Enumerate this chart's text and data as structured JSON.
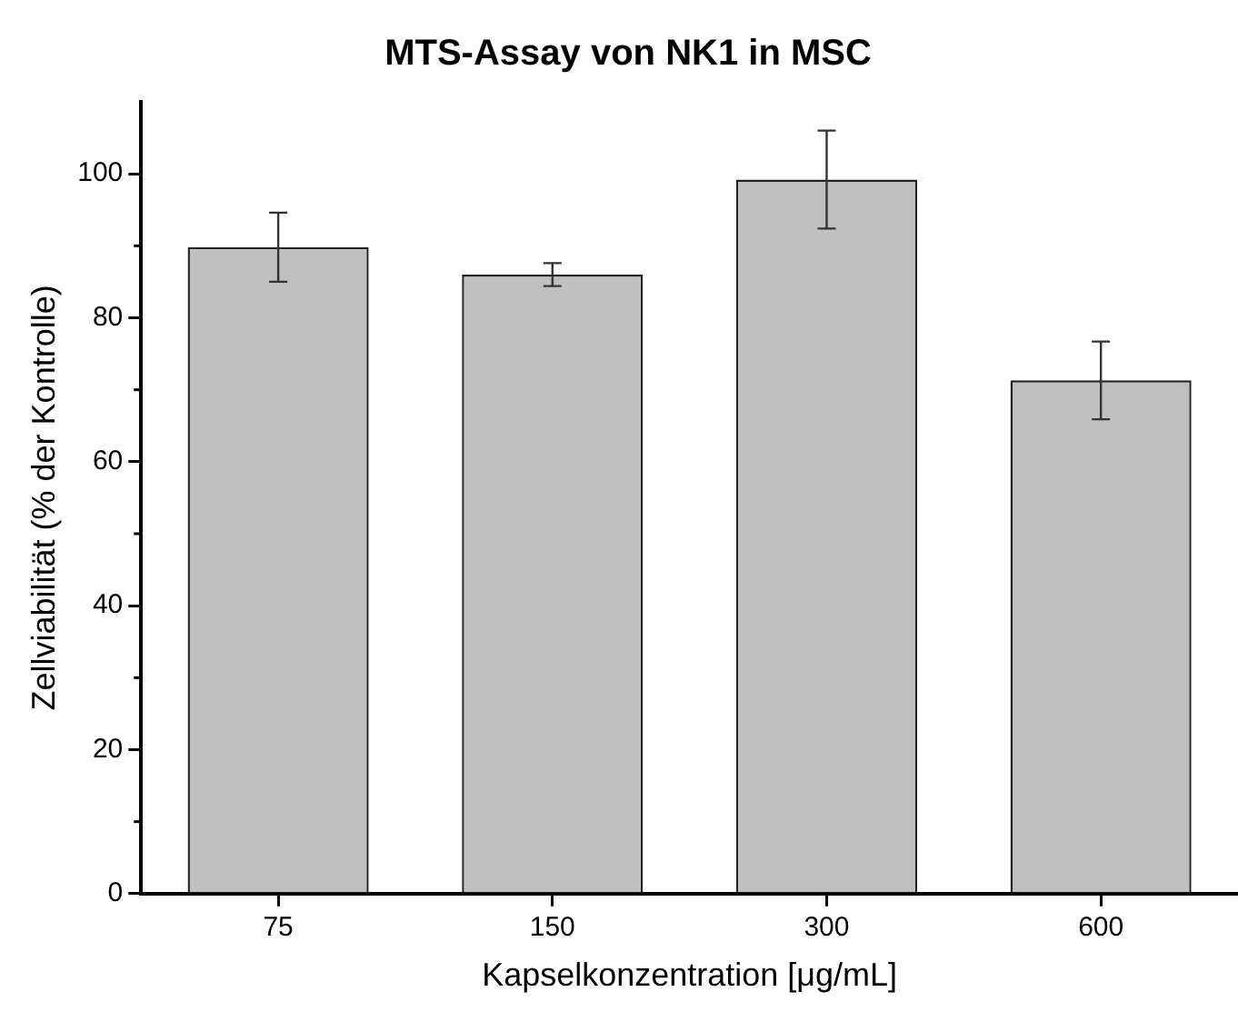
{
  "chart_data": {
    "type": "bar",
    "title": "MTS-Assay von NK1 in MSC",
    "xlabel": "Kapselkonzentration [μg/mL]",
    "ylabel": "Zellviabilität (% der Kontrolle)",
    "categories": [
      "75",
      "150",
      "300",
      "600"
    ],
    "values": [
      89.8,
      86.0,
      99.2,
      71.3
    ],
    "errors": [
      4.8,
      1.6,
      6.8,
      5.4
    ],
    "color": "#c0c0c0",
    "ylim": [
      0,
      110
    ],
    "yticks": [
      0,
      20,
      40,
      60,
      80,
      100
    ],
    "grid": false,
    "legend": false
  }
}
